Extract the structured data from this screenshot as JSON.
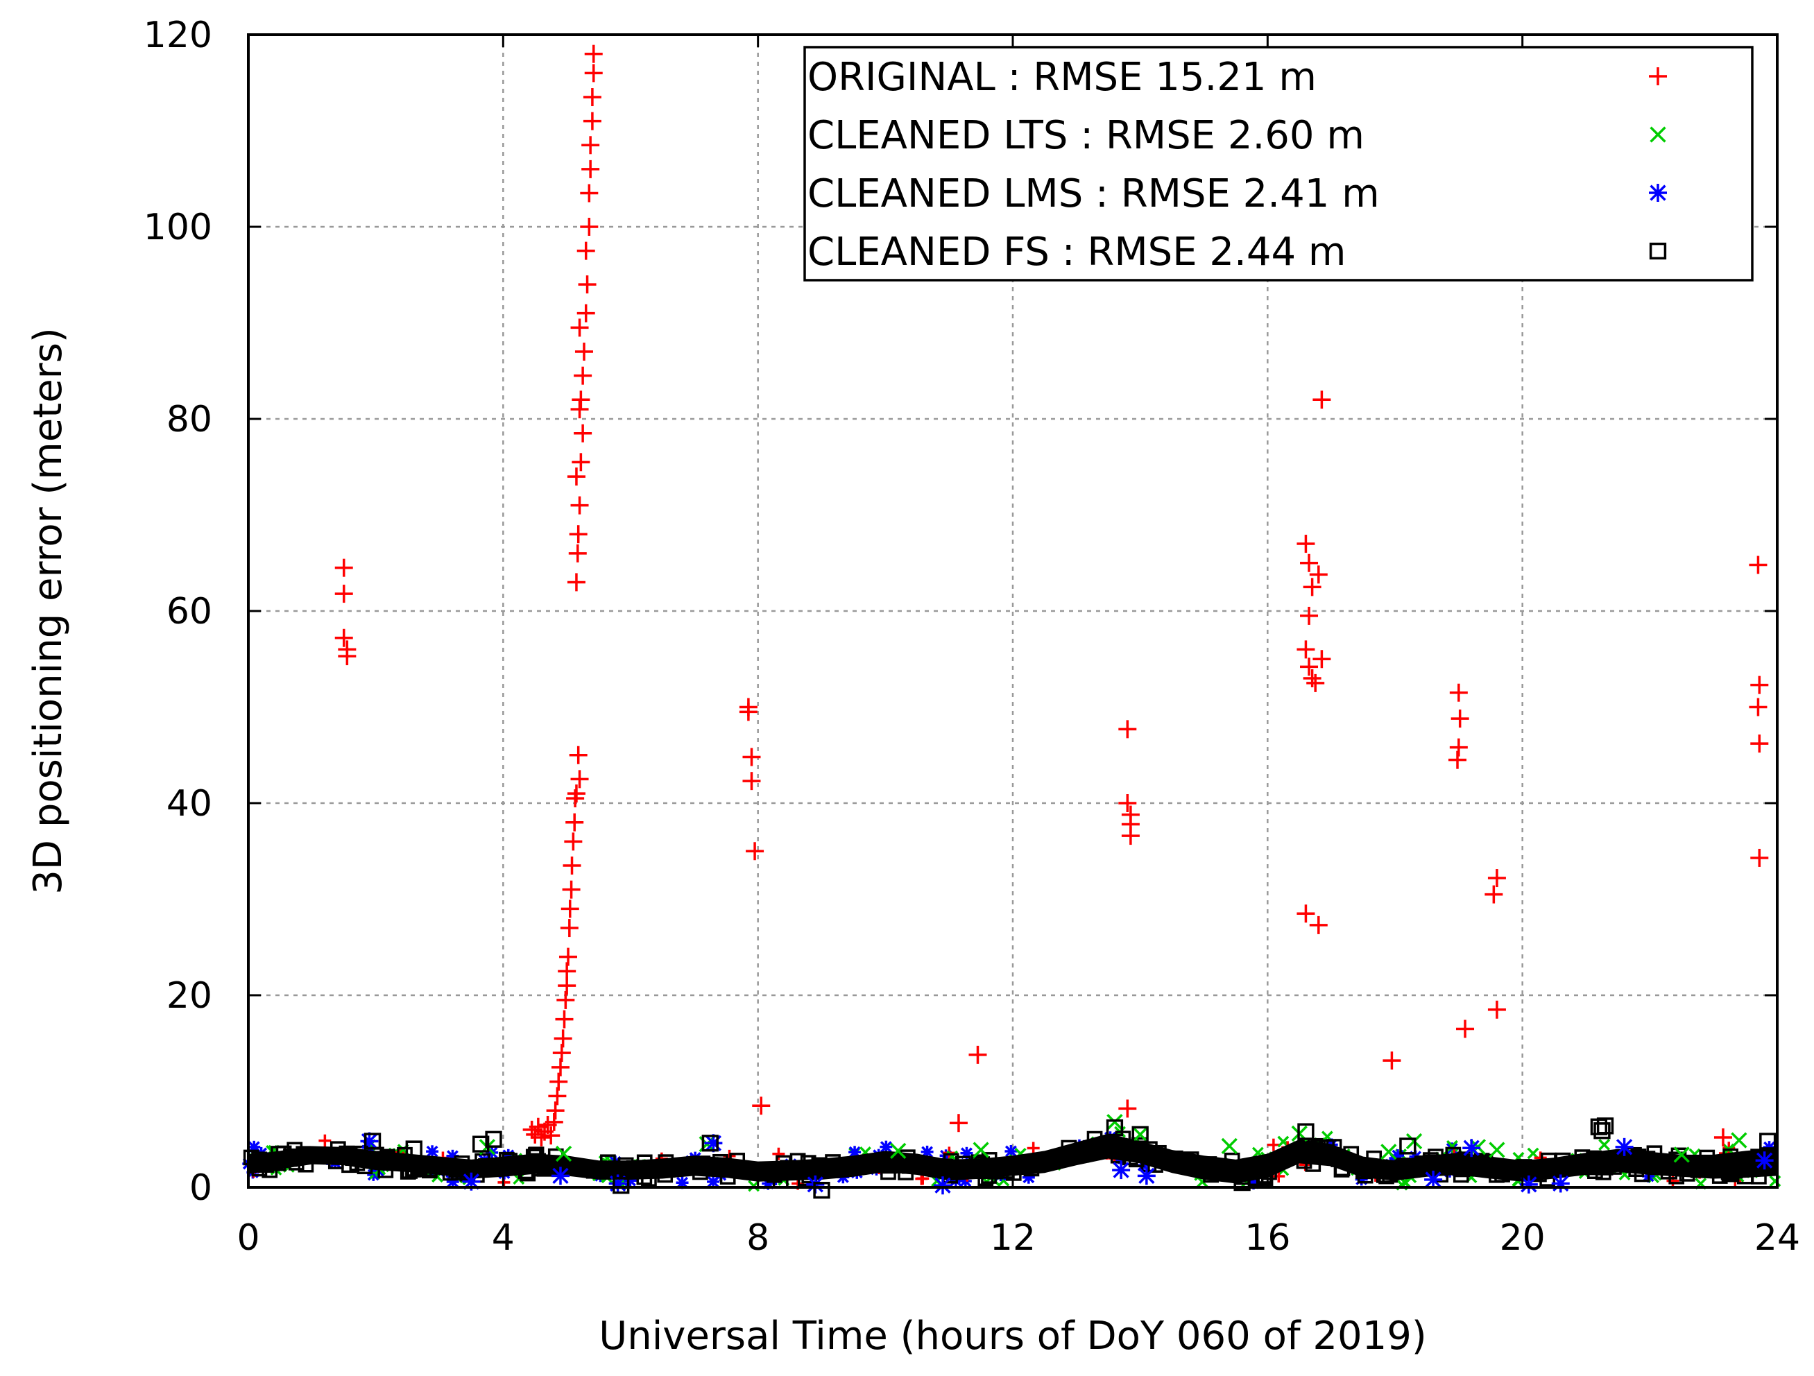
{
  "chart_data": {
    "type": "scatter",
    "title": "",
    "xlabel": "Universal Time (hours of DoY 060 of 2019)",
    "ylabel": "3D positioning error (meters)",
    "xlim": [
      0,
      24
    ],
    "ylim": [
      0,
      120
    ],
    "x_ticks": [
      "0",
      "4",
      "8",
      "12",
      "16",
      "20",
      "24"
    ],
    "y_ticks": [
      "0",
      "20",
      "40",
      "60",
      "80",
      "100",
      "120"
    ],
    "grid": true,
    "legend_position": "top-right",
    "series": [
      {
        "name": "ORIGINAL : RMSE 15.21 m",
        "marker": "plus",
        "color": "#ff0000",
        "points": [
          [
            1.5,
            64.5
          ],
          [
            1.5,
            61.8
          ],
          [
            1.5,
            57.2
          ],
          [
            1.55,
            56.0
          ],
          [
            1.55,
            55.3
          ],
          [
            4.45,
            6.0
          ],
          [
            4.5,
            5.5
          ],
          [
            4.55,
            6.3
          ],
          [
            4.6,
            5.2
          ],
          [
            4.65,
            5.8
          ],
          [
            4.7,
            6.5
          ],
          [
            4.75,
            5.4
          ],
          [
            4.8,
            6.8
          ],
          [
            4.82,
            8.0
          ],
          [
            4.85,
            9.5
          ],
          [
            4.87,
            11.0
          ],
          [
            4.9,
            12.5
          ],
          [
            4.92,
            14.0
          ],
          [
            4.94,
            15.5
          ],
          [
            4.96,
            17.5
          ],
          [
            4.98,
            19.5
          ],
          [
            5.0,
            21.0
          ],
          [
            5.0,
            22.5
          ],
          [
            5.02,
            24.0
          ],
          [
            5.04,
            27.0
          ],
          [
            5.05,
            29.0
          ],
          [
            5.07,
            31.0
          ],
          [
            5.08,
            33.5
          ],
          [
            5.1,
            36.0
          ],
          [
            5.12,
            38.0
          ],
          [
            5.13,
            40.5
          ],
          [
            5.15,
            41.0
          ],
          [
            5.18,
            45.0
          ],
          [
            5.2,
            42.5
          ],
          [
            5.15,
            63.0
          ],
          [
            5.17,
            66.0
          ],
          [
            5.18,
            68.0
          ],
          [
            5.2,
            71.0
          ],
          [
            5.15,
            74.0
          ],
          [
            5.22,
            75.5
          ],
          [
            5.25,
            78.5
          ],
          [
            5.2,
            81.0
          ],
          [
            5.22,
            82.0
          ],
          [
            5.25,
            84.5
          ],
          [
            5.27,
            87.0
          ],
          [
            5.2,
            89.5
          ],
          [
            5.3,
            91.0
          ],
          [
            5.32,
            94.0
          ],
          [
            5.3,
            97.5
          ],
          [
            5.35,
            100.0
          ],
          [
            5.35,
            103.5
          ],
          [
            5.37,
            106.0
          ],
          [
            5.37,
            108.5
          ],
          [
            5.4,
            111.0
          ],
          [
            5.4,
            113.5
          ],
          [
            5.42,
            116.0
          ],
          [
            5.42,
            118.0
          ],
          [
            7.85,
            50.0
          ],
          [
            7.85,
            49.5
          ],
          [
            7.9,
            44.8
          ],
          [
            7.9,
            42.3
          ],
          [
            7.95,
            35.0
          ],
          [
            8.05,
            8.5
          ],
          [
            11.15,
            6.7
          ],
          [
            11.45,
            13.8
          ],
          [
            13.8,
            47.7
          ],
          [
            13.8,
            40.0
          ],
          [
            13.85,
            38.8
          ],
          [
            13.85,
            37.8
          ],
          [
            13.85,
            36.6
          ],
          [
            13.8,
            8.2
          ],
          [
            16.6,
            67.0
          ],
          [
            16.65,
            65.0
          ],
          [
            16.7,
            62.5
          ],
          [
            16.65,
            59.5
          ],
          [
            16.8,
            63.8
          ],
          [
            16.6,
            56.0
          ],
          [
            16.65,
            54.2
          ],
          [
            16.7,
            53.0
          ],
          [
            16.75,
            52.5
          ],
          [
            16.85,
            55.0
          ],
          [
            16.6,
            28.5
          ],
          [
            16.8,
            27.3
          ],
          [
            16.85,
            82.0
          ],
          [
            17.95,
            13.2
          ],
          [
            19.0,
            51.5
          ],
          [
            19.02,
            48.8
          ],
          [
            19.0,
            45.8
          ],
          [
            18.98,
            44.5
          ],
          [
            19.1,
            16.5
          ],
          [
            19.55,
            30.5
          ],
          [
            19.6,
            32.2
          ],
          [
            19.6,
            18.5
          ],
          [
            23.7,
            64.8
          ],
          [
            23.72,
            52.3
          ],
          [
            23.7,
            50.0
          ],
          [
            23.72,
            46.2
          ],
          [
            23.72,
            34.3
          ],
          [
            23.15,
            5.2
          ]
        ]
      },
      {
        "name": "CLEANED LTS : RMSE 2.60 m",
        "marker": "cross",
        "color": "#00cc00",
        "points": [
          [
            3.75,
            4.2
          ],
          [
            4.95,
            3.5
          ],
          [
            7.2,
            4.5
          ],
          [
            10.2,
            3.8
          ],
          [
            11.5,
            3.9
          ],
          [
            13.6,
            6.8
          ],
          [
            14.0,
            5.5
          ],
          [
            15.4,
            4.3
          ],
          [
            16.5,
            5.6
          ],
          [
            17.9,
            3.7
          ],
          [
            18.3,
            4.8
          ],
          [
            19.3,
            4.2
          ],
          [
            19.6,
            3.9
          ],
          [
            22.5,
            3.4
          ],
          [
            23.4,
            4.9
          ]
        ]
      },
      {
        "name": "CLEANED LMS : RMSE 2.41 m",
        "marker": "star",
        "color": "#0000ff",
        "points": [
          [
            1.9,
            4.8
          ],
          [
            3.5,
            0.6
          ],
          [
            4.9,
            1.2
          ],
          [
            5.8,
            0.4
          ],
          [
            7.3,
            4.6
          ],
          [
            8.9,
            0.3
          ],
          [
            10.9,
            0.2
          ],
          [
            13.7,
            1.8
          ],
          [
            14.1,
            1.2
          ],
          [
            18.6,
            0.8
          ],
          [
            19.2,
            4.1
          ],
          [
            20.1,
            0.3
          ],
          [
            20.6,
            0.4
          ],
          [
            21.6,
            4.2
          ],
          [
            23.8,
            2.8
          ]
        ]
      },
      {
        "name": "CLEANED FS : RMSE 2.44 m",
        "marker": "square",
        "color": "#000000",
        "points": [
          [
            1.95,
            4.8
          ],
          [
            2.6,
            4.0
          ],
          [
            3.65,
            4.5
          ],
          [
            3.85,
            5.0
          ],
          [
            5.85,
            0.2
          ],
          [
            7.25,
            4.6
          ],
          [
            9.0,
            -0.3
          ],
          [
            13.6,
            6.2
          ],
          [
            14.0,
            5.5
          ],
          [
            15.6,
            0.5
          ],
          [
            16.6,
            5.8
          ],
          [
            18.2,
            4.3
          ],
          [
            21.2,
            6.3
          ],
          [
            21.25,
            5.9
          ],
          [
            21.3,
            6.4
          ],
          [
            22.3,
            1.7
          ],
          [
            23.5,
            1.2
          ],
          [
            23.85,
            4.8
          ]
        ]
      }
    ],
    "dense_band": {
      "color": "#000000",
      "x": [
        0,
        0.5,
        1,
        1.5,
        2,
        2.5,
        3,
        3.5,
        4,
        4.5,
        5,
        5.5,
        6,
        6.5,
        7,
        7.5,
        8,
        8.5,
        9,
        9.5,
        10,
        10.5,
        11,
        11.5,
        12,
        12.5,
        13,
        13.5,
        14,
        14.5,
        15,
        15.5,
        16,
        16.5,
        17,
        17.5,
        18,
        18.5,
        19,
        19.5,
        20,
        20.5,
        21,
        21.5,
        22,
        22.5,
        23,
        23.5,
        24
      ],
      "y_low": [
        1.4,
        1.9,
        2.4,
        2.3,
        1.8,
        1.6,
        1.3,
        0.9,
        1.1,
        1.4,
        1.2,
        0.8,
        0.8,
        0.9,
        1.2,
        1.0,
        0.6,
        0.7,
        0.8,
        1.1,
        1.6,
        1.3,
        0.7,
        0.9,
        1.2,
        1.5,
        2.3,
        3.0,
        2.5,
        1.5,
        0.8,
        0.4,
        1.0,
        2.5,
        2.2,
        1.0,
        0.7,
        1.1,
        1.3,
        0.9,
        0.6,
        0.9,
        1.3,
        1.6,
        1.3,
        1.1,
        0.9,
        1.0,
        1.2
      ],
      "y_high": [
        3.4,
        3.8,
        4.3,
        4.2,
        3.8,
        3.5,
        3.2,
        2.9,
        3.2,
        3.5,
        3.3,
        2.8,
        2.8,
        3.0,
        3.3,
        3.1,
        2.7,
        2.8,
        3.0,
        3.3,
        3.8,
        3.5,
        2.9,
        3.0,
        3.3,
        3.8,
        4.7,
        5.6,
        4.8,
        3.9,
        3.3,
        2.9,
        3.5,
        5.0,
        4.5,
        3.2,
        2.8,
        3.3,
        3.6,
        3.2,
        2.8,
        3.1,
        3.6,
        4.0,
        3.7,
        3.4,
        3.4,
        3.8,
        4.1
      ]
    }
  }
}
